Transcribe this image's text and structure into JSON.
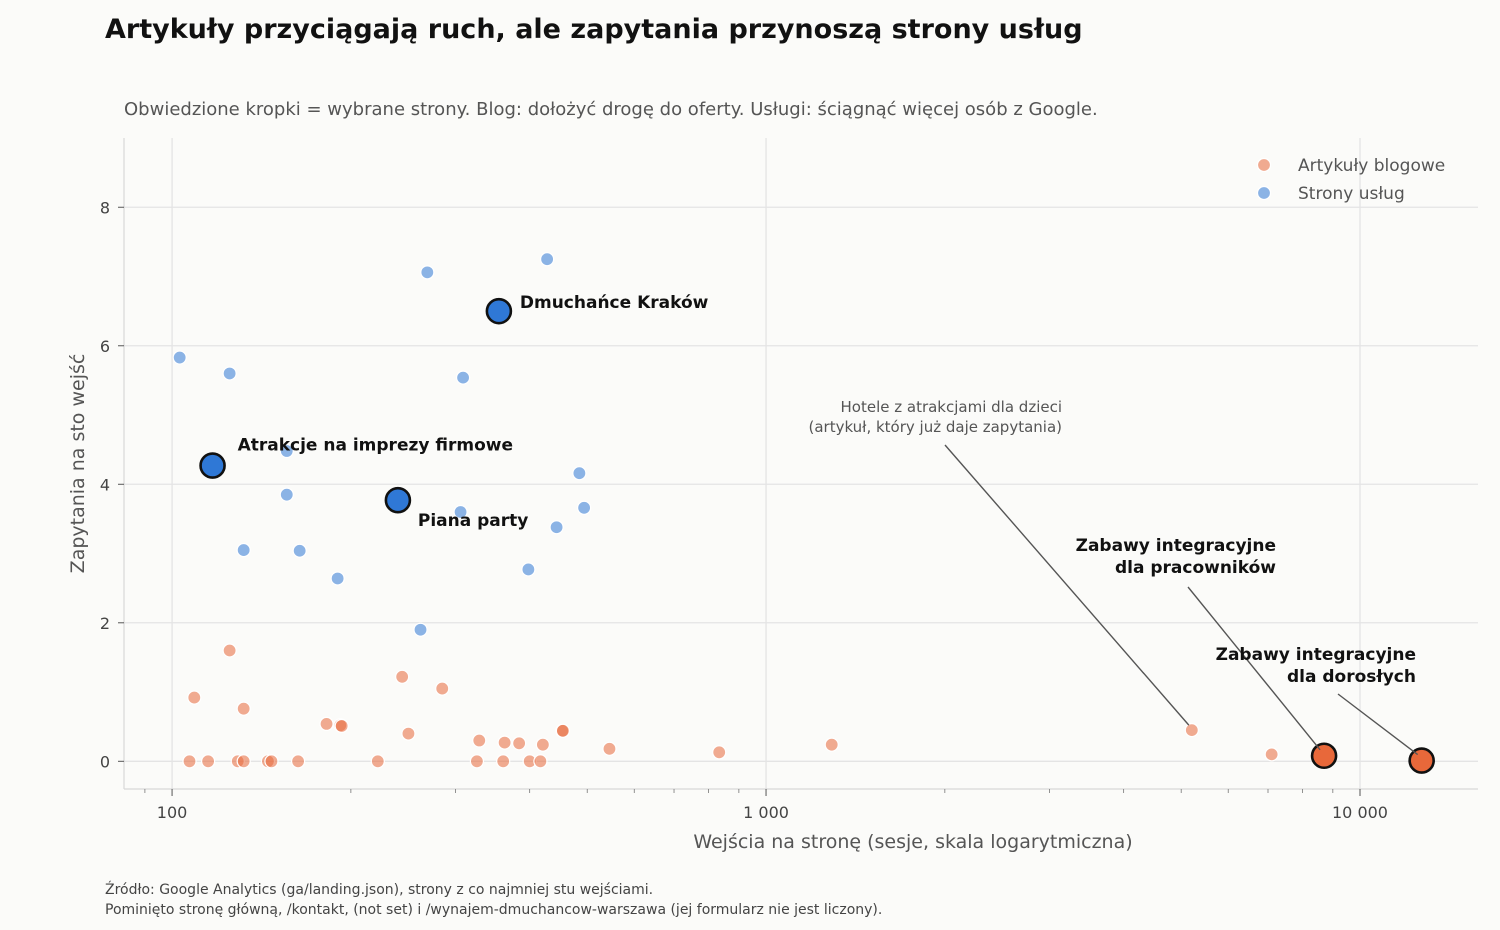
{
  "title": "Artykuły przyciągają ruch, ale zapytania przynoszą strony usług",
  "subtitle": "Obwiedzione kropki = wybrane strony. Blog: dołożyć drogę do oferty. Usługi: ściągnąć więcej osób z Google.",
  "footer": [
    "Źródło: Google Analytics (ga/landing.json), strony z co najmniej stu wejściami.",
    "Pominięto stronę główną, /kontakt, (not set) i /wynajem-dmuchancow-warszawa (jej formularz nie jest liczony)."
  ],
  "colors": {
    "blog": "#e8683a",
    "services": "#2f78d6",
    "background": "#fbfbf9",
    "grid": "#e4e4e4"
  },
  "chart_data": {
    "type": "scatter",
    "x_scale": "log",
    "xlabel": "Wejścia na stronę (sesje, skala logarytmiczna)",
    "ylabel": "Zapytania na sto wejść",
    "xlim": [
      83,
      15800
    ],
    "ylim": [
      -0.4,
      9.0
    ],
    "x_ticks": [
      100,
      1000,
      10000
    ],
    "x_tick_labels": [
      "100",
      "1 000",
      "10 000"
    ],
    "y_ticks": [
      0,
      2,
      4,
      6,
      8
    ],
    "y_tick_labels": [
      "0",
      "2",
      "4",
      "6",
      "8"
    ],
    "grid": true,
    "legend_position": "top-right",
    "series": [
      {
        "name": "Artykuły blogowe",
        "color": "#e8683a",
        "points": [
          [
            107,
            0
          ],
          [
            115,
            0
          ],
          [
            129,
            0
          ],
          [
            132,
            0
          ],
          [
            145,
            0
          ],
          [
            147,
            0
          ],
          [
            163,
            0
          ],
          [
            222,
            0
          ],
          [
            326,
            0
          ],
          [
            361,
            0
          ],
          [
            400,
            0
          ],
          [
            417,
            0
          ],
          [
            109,
            0.92
          ],
          [
            125,
            1.6
          ],
          [
            132,
            0.76
          ],
          [
            182,
            0.54
          ],
          [
            192,
            0.52
          ],
          [
            193,
            0.51
          ],
          [
            244,
            1.22
          ],
          [
            250,
            0.4
          ],
          [
            285,
            1.05
          ],
          [
            329,
            0.3
          ],
          [
            363,
            0.27
          ],
          [
            384,
            0.26
          ],
          [
            421,
            0.24
          ],
          [
            454,
            0.44
          ],
          [
            455,
            0.44
          ],
          [
            545,
            0.18
          ],
          [
            834,
            0.13
          ],
          [
            1290,
            0.24
          ],
          [
            5210,
            0.45
          ],
          [
            7100,
            0.1
          ]
        ]
      },
      {
        "name": "Strony usług",
        "color": "#2f78d6",
        "points": [
          [
            103,
            5.83
          ],
          [
            125,
            5.6
          ],
          [
            132,
            3.05
          ],
          [
            156,
            4.48
          ],
          [
            156,
            3.85
          ],
          [
            164,
            3.04
          ],
          [
            190,
            2.64
          ],
          [
            262,
            1.9
          ],
          [
            269,
            7.06
          ],
          [
            306,
            3.6
          ],
          [
            309,
            5.54
          ],
          [
            398,
            2.77
          ],
          [
            428,
            7.25
          ],
          [
            444,
            3.38
          ],
          [
            485,
            4.16
          ],
          [
            494,
            3.66
          ]
        ]
      }
    ],
    "highlighted": [
      {
        "label": "Dmuchańce Kraków",
        "series": "Strony usług",
        "x": 355,
        "y": 6.5
      },
      {
        "label": "Atrakcje na imprezy firmowe",
        "series": "Strony usług",
        "x": 117,
        "y": 4.27
      },
      {
        "label": "Piana party",
        "series": "Strony usług",
        "x": 240,
        "y": 3.77
      },
      {
        "label": "Zabawy integracyjne\ndla pracowników",
        "series": "Artykuły blogowe",
        "x": 8700,
        "y": 0.08
      },
      {
        "label": "Zabawy integracyjne\ndla dorosłych",
        "series": "Artykuły blogowe",
        "x": 12700,
        "y": 0.01
      }
    ],
    "annotations": [
      {
        "text": "Hotele z atrakcjami dla dzieci\n(artykuł, który już daje zapytania)",
        "x": 5210,
        "y": 0.45
      }
    ]
  }
}
